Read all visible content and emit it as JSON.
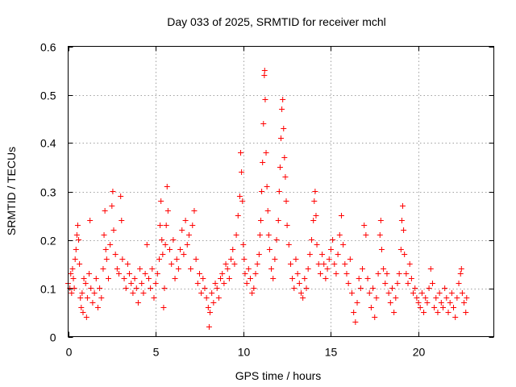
{
  "chart_data": {
    "type": "scatter",
    "title": "Day 033 of 2025, SRMTID for receiver mchl",
    "xlabel": "GPS time / hours",
    "ylabel": "SRMTID / TECUs",
    "xlim": [
      0,
      24.3
    ],
    "ylim": [
      0,
      0.6
    ],
    "xticks": [
      0,
      5,
      10,
      15,
      20
    ],
    "xtick_labels": [
      "0",
      "5",
      "10",
      "15",
      "20"
    ],
    "yticks": [
      0,
      0.1,
      0.2,
      0.3,
      0.4,
      0.5,
      0.6
    ],
    "ytick_labels": [
      "0",
      "0.1",
      "0.2",
      "0.3",
      "0.4",
      "0.5",
      "0.6"
    ],
    "grid": true,
    "marker": "+",
    "color": "#ff0000",
    "series": [
      {
        "name": "SRMTID",
        "points": [
          [
            0.0,
            0.11
          ],
          [
            0.1,
            0.1
          ],
          [
            0.15,
            0.13
          ],
          [
            0.2,
            0.09
          ],
          [
            0.25,
            0.14
          ],
          [
            0.3,
            0.12
          ],
          [
            0.35,
            0.1
          ],
          [
            0.4,
            0.16
          ],
          [
            0.45,
            0.18
          ],
          [
            0.5,
            0.21
          ],
          [
            0.55,
            0.23
          ],
          [
            0.6,
            0.2
          ],
          [
            0.65,
            0.15
          ],
          [
            0.7,
            0.08
          ],
          [
            0.75,
            0.06
          ],
          [
            0.8,
            0.09
          ],
          [
            0.85,
            0.05
          ],
          [
            0.9,
            0.12
          ],
          [
            1.0,
            0.11
          ],
          [
            1.05,
            0.04
          ],
          [
            1.1,
            0.08
          ],
          [
            1.2,
            0.13
          ],
          [
            1.25,
            0.24
          ],
          [
            1.3,
            0.1
          ],
          [
            1.4,
            0.07
          ],
          [
            1.5,
            0.09
          ],
          [
            1.6,
            0.12
          ],
          [
            1.7,
            0.06
          ],
          [
            1.8,
            0.1
          ],
          [
            1.9,
            0.08
          ],
          [
            2.0,
            0.14
          ],
          [
            2.05,
            0.21
          ],
          [
            2.1,
            0.26
          ],
          [
            2.15,
            0.18
          ],
          [
            2.2,
            0.16
          ],
          [
            2.3,
            0.12
          ],
          [
            2.4,
            0.19
          ],
          [
            2.5,
            0.27
          ],
          [
            2.55,
            0.3
          ],
          [
            2.6,
            0.22
          ],
          [
            2.7,
            0.17
          ],
          [
            2.8,
            0.14
          ],
          [
            2.9,
            0.13
          ],
          [
            3.0,
            0.29
          ],
          [
            3.05,
            0.24
          ],
          [
            3.1,
            0.16
          ],
          [
            3.2,
            0.12
          ],
          [
            3.3,
            0.1
          ],
          [
            3.4,
            0.15
          ],
          [
            3.5,
            0.13
          ],
          [
            3.6,
            0.11
          ],
          [
            3.7,
            0.09
          ],
          [
            3.8,
            0.12
          ],
          [
            3.9,
            0.1
          ],
          [
            4.0,
            0.07
          ],
          [
            4.1,
            0.14
          ],
          [
            4.2,
            0.11
          ],
          [
            4.3,
            0.09
          ],
          [
            4.4,
            0.13
          ],
          [
            4.5,
            0.19
          ],
          [
            4.6,
            0.12
          ],
          [
            4.7,
            0.1
          ],
          [
            4.8,
            0.14
          ],
          [
            4.9,
            0.08
          ],
          [
            5.0,
            0.11
          ],
          [
            5.1,
            0.13
          ],
          [
            5.2,
            0.16
          ],
          [
            5.25,
            0.23
          ],
          [
            5.3,
            0.28
          ],
          [
            5.35,
            0.2
          ],
          [
            5.4,
            0.17
          ],
          [
            5.45,
            0.06
          ],
          [
            5.5,
            0.1
          ],
          [
            5.55,
            0.19
          ],
          [
            5.6,
            0.23
          ],
          [
            5.65,
            0.31
          ],
          [
            5.7,
            0.26
          ],
          [
            5.8,
            0.18
          ],
          [
            5.9,
            0.15
          ],
          [
            6.0,
            0.2
          ],
          [
            6.1,
            0.12
          ],
          [
            6.2,
            0.16
          ],
          [
            6.3,
            0.14
          ],
          [
            6.4,
            0.18
          ],
          [
            6.5,
            0.22
          ],
          [
            6.6,
            0.17
          ],
          [
            6.7,
            0.24
          ],
          [
            6.8,
            0.19
          ],
          [
            6.9,
            0.21
          ],
          [
            7.0,
            0.14
          ],
          [
            7.1,
            0.23
          ],
          [
            7.2,
            0.26
          ],
          [
            7.3,
            0.16
          ],
          [
            7.4,
            0.11
          ],
          [
            7.5,
            0.13
          ],
          [
            7.6,
            0.09
          ],
          [
            7.7,
            0.12
          ],
          [
            7.8,
            0.1
          ],
          [
            7.9,
            0.08
          ],
          [
            8.0,
            0.06
          ],
          [
            8.05,
            0.02
          ],
          [
            8.1,
            0.05
          ],
          [
            8.2,
            0.09
          ],
          [
            8.3,
            0.07
          ],
          [
            8.4,
            0.11
          ],
          [
            8.5,
            0.1
          ],
          [
            8.6,
            0.08
          ],
          [
            8.7,
            0.12
          ],
          [
            8.8,
            0.13
          ],
          [
            8.9,
            0.11
          ],
          [
            9.0,
            0.15
          ],
          [
            9.1,
            0.14
          ],
          [
            9.2,
            0.12
          ],
          [
            9.3,
            0.16
          ],
          [
            9.4,
            0.18
          ],
          [
            9.5,
            0.15
          ],
          [
            9.6,
            0.21
          ],
          [
            9.7,
            0.25
          ],
          [
            9.8,
            0.29
          ],
          [
            9.85,
            0.38
          ],
          [
            9.9,
            0.34
          ],
          [
            9.95,
            0.28
          ],
          [
            10.0,
            0.19
          ],
          [
            10.05,
            0.16
          ],
          [
            10.1,
            0.13
          ],
          [
            10.2,
            0.11
          ],
          [
            10.3,
            0.14
          ],
          [
            10.4,
            0.12
          ],
          [
            10.5,
            0.09
          ],
          [
            10.6,
            0.1
          ],
          [
            10.7,
            0.13
          ],
          [
            10.8,
            0.15
          ],
          [
            10.9,
            0.17
          ],
          [
            10.95,
            0.21
          ],
          [
            11.0,
            0.24
          ],
          [
            11.05,
            0.3
          ],
          [
            11.1,
            0.36
          ],
          [
            11.15,
            0.44
          ],
          [
            11.2,
            0.54
          ],
          [
            11.22,
            0.55
          ],
          [
            11.25,
            0.49
          ],
          [
            11.3,
            0.38
          ],
          [
            11.35,
            0.31
          ],
          [
            11.4,
            0.26
          ],
          [
            11.45,
            0.21
          ],
          [
            11.5,
            0.18
          ],
          [
            11.6,
            0.14
          ],
          [
            11.7,
            0.12
          ],
          [
            11.8,
            0.16
          ],
          [
            11.9,
            0.2
          ],
          [
            12.0,
            0.24
          ],
          [
            12.05,
            0.3
          ],
          [
            12.1,
            0.35
          ],
          [
            12.15,
            0.41
          ],
          [
            12.2,
            0.47
          ],
          [
            12.25,
            0.49
          ],
          [
            12.3,
            0.43
          ],
          [
            12.35,
            0.37
          ],
          [
            12.4,
            0.33
          ],
          [
            12.45,
            0.28
          ],
          [
            12.5,
            0.23
          ],
          [
            12.6,
            0.19
          ],
          [
            12.7,
            0.15
          ],
          [
            12.8,
            0.12
          ],
          [
            12.9,
            0.1
          ],
          [
            13.0,
            0.16
          ],
          [
            13.1,
            0.13
          ],
          [
            13.2,
            0.11
          ],
          [
            13.3,
            0.09
          ],
          [
            13.4,
            0.08
          ],
          [
            13.5,
            0.12
          ],
          [
            13.6,
            0.1
          ],
          [
            13.7,
            0.14
          ],
          [
            13.8,
            0.17
          ],
          [
            13.9,
            0.2
          ],
          [
            14.0,
            0.24
          ],
          [
            14.05,
            0.28
          ],
          [
            14.1,
            0.3
          ],
          [
            14.15,
            0.25
          ],
          [
            14.2,
            0.19
          ],
          [
            14.3,
            0.15
          ],
          [
            14.4,
            0.13
          ],
          [
            14.5,
            0.17
          ],
          [
            14.6,
            0.15
          ],
          [
            14.7,
            0.12
          ],
          [
            14.8,
            0.14
          ],
          [
            14.9,
            0.16
          ],
          [
            15.0,
            0.18
          ],
          [
            15.1,
            0.2
          ],
          [
            15.2,
            0.15
          ],
          [
            15.3,
            0.13
          ],
          [
            15.4,
            0.17
          ],
          [
            15.5,
            0.21
          ],
          [
            15.6,
            0.25
          ],
          [
            15.7,
            0.19
          ],
          [
            15.8,
            0.15
          ],
          [
            15.9,
            0.13
          ],
          [
            16.0,
            0.11
          ],
          [
            16.1,
            0.16
          ],
          [
            16.2,
            0.09
          ],
          [
            16.3,
            0.05
          ],
          [
            16.4,
            0.03
          ],
          [
            16.5,
            0.07
          ],
          [
            16.6,
            0.12
          ],
          [
            16.7,
            0.1
          ],
          [
            16.8,
            0.14
          ],
          [
            16.9,
            0.23
          ],
          [
            17.0,
            0.21
          ],
          [
            17.1,
            0.12
          ],
          [
            17.2,
            0.09
          ],
          [
            17.3,
            0.06
          ],
          [
            17.4,
            0.1
          ],
          [
            17.5,
            0.04
          ],
          [
            17.6,
            0.08
          ],
          [
            17.7,
            0.13
          ],
          [
            17.8,
            0.21
          ],
          [
            17.85,
            0.24
          ],
          [
            17.9,
            0.18
          ],
          [
            18.0,
            0.14
          ],
          [
            18.1,
            0.11
          ],
          [
            18.2,
            0.13
          ],
          [
            18.3,
            0.09
          ],
          [
            18.4,
            0.07
          ],
          [
            18.5,
            0.1
          ],
          [
            18.6,
            0.05
          ],
          [
            18.7,
            0.08
          ],
          [
            18.8,
            0.11
          ],
          [
            18.9,
            0.13
          ],
          [
            19.0,
            0.18
          ],
          [
            19.05,
            0.24
          ],
          [
            19.1,
            0.27
          ],
          [
            19.15,
            0.22
          ],
          [
            19.2,
            0.17
          ],
          [
            19.3,
            0.13
          ],
          [
            19.4,
            0.11
          ],
          [
            19.5,
            0.15
          ],
          [
            19.6,
            0.12
          ],
          [
            19.7,
            0.09
          ],
          [
            19.8,
            0.1
          ],
          [
            19.9,
            0.08
          ],
          [
            20.0,
            0.07
          ],
          [
            20.1,
            0.06
          ],
          [
            20.2,
            0.09
          ],
          [
            20.3,
            0.05
          ],
          [
            20.4,
            0.08
          ],
          [
            20.5,
            0.07
          ],
          [
            20.6,
            0.1
          ],
          [
            20.7,
            0.14
          ],
          [
            20.8,
            0.11
          ],
          [
            20.9,
            0.06
          ],
          [
            21.0,
            0.08
          ],
          [
            21.1,
            0.05
          ],
          [
            21.2,
            0.09
          ],
          [
            21.3,
            0.07
          ],
          [
            21.4,
            0.06
          ],
          [
            21.5,
            0.1
          ],
          [
            21.6,
            0.08
          ],
          [
            21.7,
            0.05
          ],
          [
            21.8,
            0.07
          ],
          [
            21.9,
            0.09
          ],
          [
            22.0,
            0.06
          ],
          [
            22.1,
            0.04
          ],
          [
            22.2,
            0.08
          ],
          [
            22.3,
            0.11
          ],
          [
            22.4,
            0.13
          ],
          [
            22.45,
            0.14
          ],
          [
            22.5,
            0.09
          ],
          [
            22.6,
            0.07
          ],
          [
            22.7,
            0.05
          ],
          [
            22.75,
            0.08
          ]
        ]
      }
    ]
  }
}
